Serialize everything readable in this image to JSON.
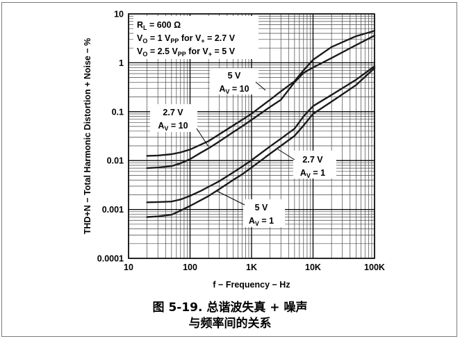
{
  "figure": {
    "caption_line1": "图 5-19. 总谐波失真 + 噪声",
    "caption_line2": "与频率间的关系"
  },
  "chart_data": {
    "type": "line",
    "xlabel": "f − Frequency − Hz",
    "ylabel": "THD+N − Total Harmonic Distortion + Noise − %",
    "x_scale": "log",
    "y_scale": "log",
    "xlim": [
      10,
      100000
    ],
    "ylim": [
      0.0001,
      10
    ],
    "x_ticks": [
      10,
      100,
      1000,
      10000,
      100000
    ],
    "x_tick_labels": [
      "10",
      "100",
      "1K",
      "10K",
      "100K"
    ],
    "y_ticks": [
      0.0001,
      0.001,
      0.01,
      0.1,
      1,
      10
    ],
    "y_tick_labels": [
      "0.0001",
      "0.001",
      "0.01",
      "0.1",
      "1",
      "10"
    ],
    "grid": true,
    "conditions": {
      "line1": {
        "pre": "R",
        "sub": "L",
        "post": " = 600 Ω"
      },
      "line2": {
        "pre": "V",
        "sub": "O",
        "mid": " = 1 V",
        "sub2": "PP",
        "mid2": " for V",
        "sub3": "+",
        "post": " = 2.7 V"
      },
      "line3": {
        "pre": "V",
        "sub": "O",
        "mid": " = 2.5 V",
        "sub2": "PP",
        "mid2": " for V",
        "sub3": "+",
        "post": " = 5 V"
      }
    },
    "series": [
      {
        "label_voltage": "2.7 V",
        "label_gain_pre": "A",
        "label_gain_sub": "V",
        "label_gain_post": " = 10",
        "x": [
          20,
          30,
          50,
          70,
          100,
          150,
          200,
          300,
          500,
          700,
          1000,
          2000,
          3000,
          5000,
          7000,
          10000,
          20000,
          50000,
          100000
        ],
        "y": [
          0.0125,
          0.0127,
          0.0135,
          0.0147,
          0.0168,
          0.0212,
          0.025,
          0.0345,
          0.052,
          0.068,
          0.091,
          0.175,
          0.26,
          0.42,
          0.7,
          1.15,
          2.1,
          3.5,
          4.5
        ]
      },
      {
        "label_voltage": "5 V",
        "label_gain_pre": "A",
        "label_gain_sub": "V",
        "label_gain_post": " = 10",
        "x": [
          20,
          30,
          50,
          70,
          100,
          150,
          200,
          300,
          500,
          700,
          1000,
          2000,
          3000,
          5000,
          7000,
          10000,
          20000,
          50000,
          100000
        ],
        "y": [
          0.007,
          0.0072,
          0.0077,
          0.0088,
          0.0107,
          0.0145,
          0.0178,
          0.0247,
          0.038,
          0.05,
          0.068,
          0.125,
          0.175,
          0.4,
          0.62,
          0.8,
          1.25,
          2.3,
          3.6
        ]
      },
      {
        "label_voltage": "2.7 V",
        "label_gain_pre": "A",
        "label_gain_sub": "V",
        "label_gain_post": " = 1",
        "x": [
          20,
          30,
          50,
          70,
          100,
          150,
          200,
          300,
          500,
          700,
          1000,
          2000,
          3000,
          5000,
          7000,
          10000,
          20000,
          50000,
          100000
        ],
        "y": [
          0.0014,
          0.00142,
          0.00145,
          0.0016,
          0.0019,
          0.0024,
          0.0029,
          0.0038,
          0.0057,
          0.0075,
          0.0102,
          0.0195,
          0.028,
          0.045,
          0.08,
          0.13,
          0.22,
          0.45,
          0.85
        ]
      },
      {
        "label_voltage": "5 V",
        "label_gain_pre": "A",
        "label_gain_sub": "V",
        "label_gain_post": " = 1",
        "x": [
          20,
          30,
          50,
          70,
          100,
          150,
          200,
          300,
          500,
          700,
          1000,
          2000,
          3000,
          5000,
          7000,
          10000,
          20000,
          50000,
          100000
        ],
        "y": [
          0.0007,
          0.00072,
          0.00078,
          0.00095,
          0.00118,
          0.00155,
          0.00188,
          0.00262,
          0.004,
          0.0052,
          0.0072,
          0.0138,
          0.02,
          0.032,
          0.052,
          0.09,
          0.16,
          0.35,
          0.78
        ]
      }
    ]
  }
}
